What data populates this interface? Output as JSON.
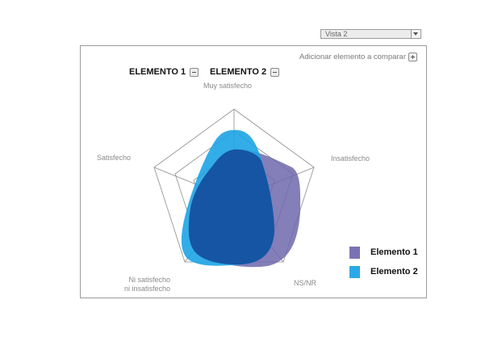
{
  "view_select": {
    "value": "Vista 2"
  },
  "panel": {
    "add_element_label": "Adicionar elemento a comparar",
    "elements": [
      {
        "label": "ELEMENTO 1"
      },
      {
        "label": "ELEMENTO 2"
      }
    ]
  },
  "radar": {
    "axes": [
      "Muy satisfecho",
      "Insatisfecho",
      "NS/NR",
      "Ni satisfecho\nni insatisfecho",
      "Satisfecho"
    ],
    "axis_label_lines": {
      "bottom_left_1": "Ni satisfecho",
      "bottom_left_2": "ni insatisfecho"
    },
    "rings": 4
  },
  "legend": {
    "items": [
      {
        "label": "Elemento 1",
        "color": "#7b72b4"
      },
      {
        "label": "Elemento 2",
        "color": "#2aa9e6"
      }
    ]
  },
  "colors": {
    "elemento_1": "#6f67ad",
    "elemento_2": "#1da4e6",
    "overlap": "#1555a4",
    "grid": "#8c8c8c"
  }
}
